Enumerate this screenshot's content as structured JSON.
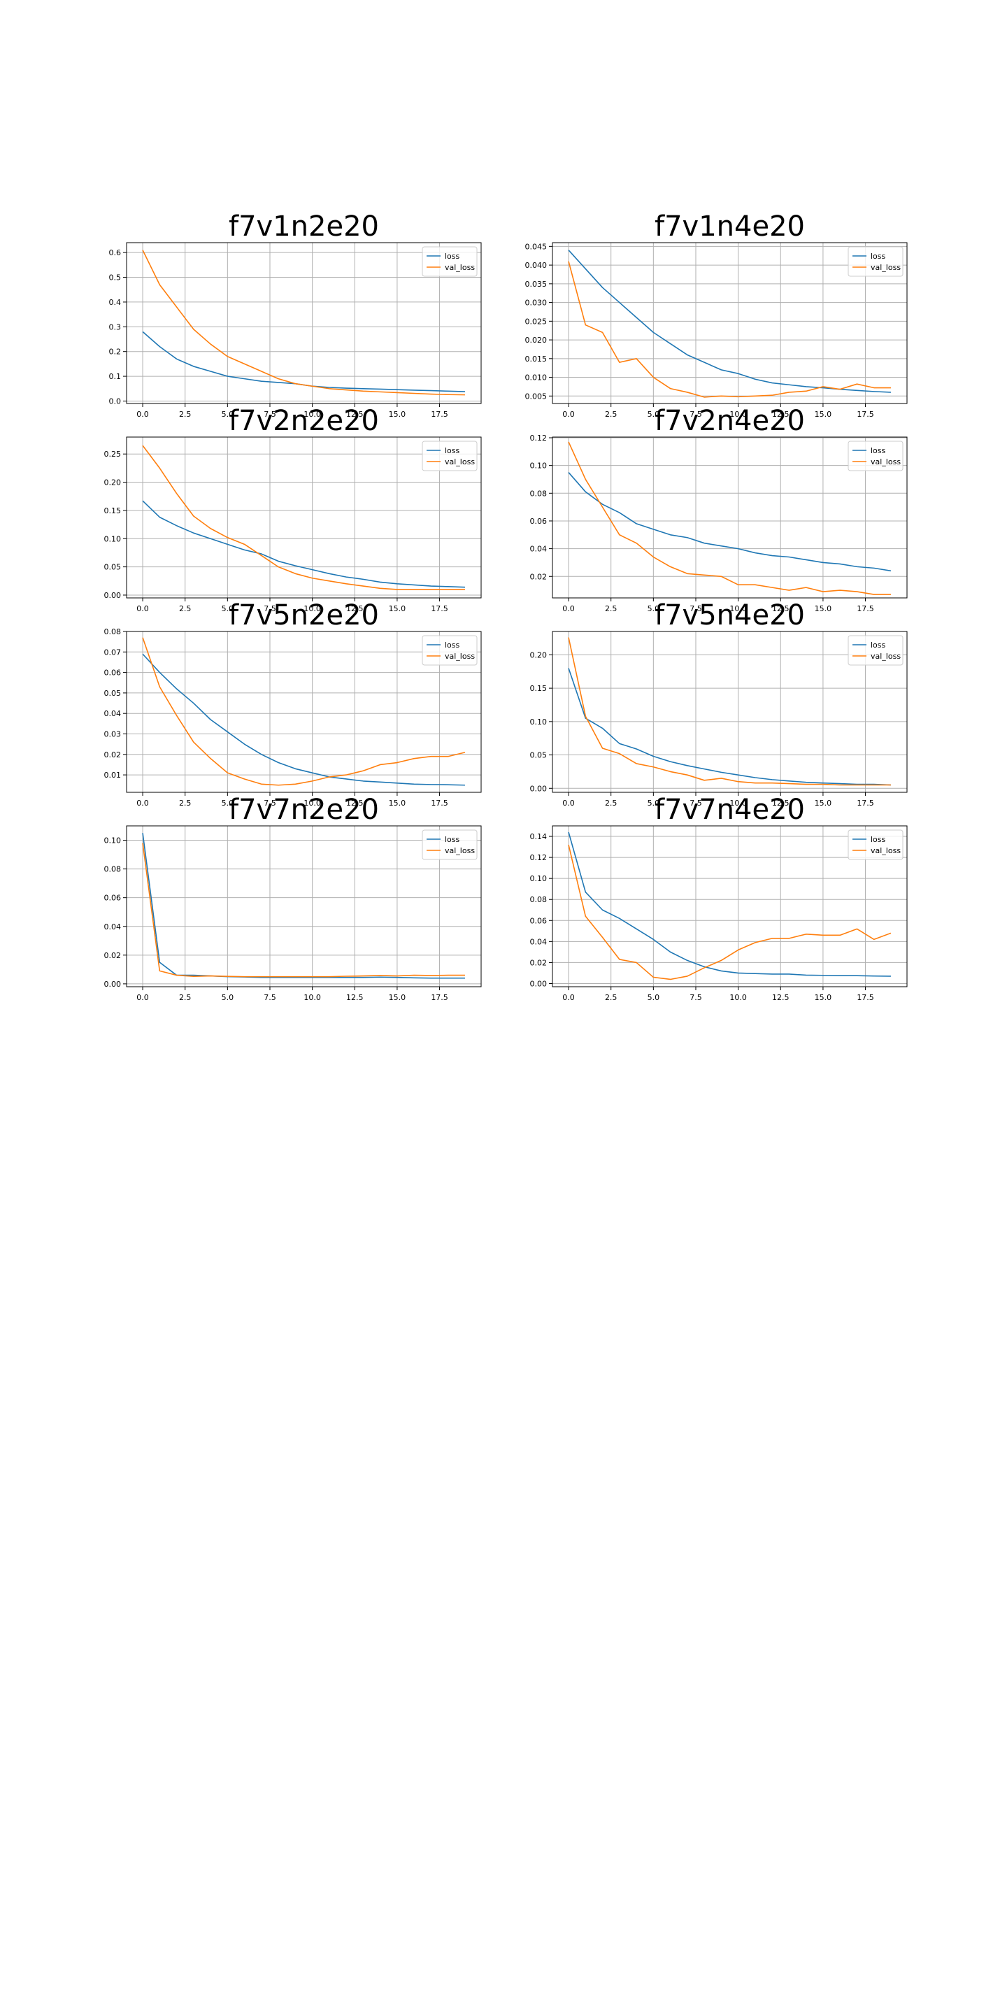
{
  "legend_labels": [
    "loss",
    "val_loss"
  ],
  "colors": {
    "loss": "#1f77b4",
    "val_loss": "#ff7f0e",
    "grid": "#b0b0b0",
    "axes": "#000000"
  },
  "chart_data": [
    {
      "type": "line",
      "title": "f7v1n2e20",
      "x": [
        0,
        1,
        2,
        3,
        4,
        5,
        6,
        7,
        8,
        9,
        10,
        11,
        12,
        13,
        14,
        15,
        16,
        17,
        18,
        19
      ],
      "xlim": [
        -0.95,
        19.95
      ],
      "ylim": [
        -0.01,
        0.64
      ],
      "xticks": [
        0.0,
        2.5,
        5.0,
        7.5,
        10.0,
        12.5,
        15.0,
        17.5
      ],
      "xtick_labels": [
        "0.0",
        "2.5",
        "5.0",
        "7.5",
        "10.0",
        "12.5",
        "15.0",
        "17.5"
      ],
      "yticks": [
        0.0,
        0.1,
        0.2,
        0.3,
        0.4,
        0.5,
        0.6
      ],
      "ytick_labels": [
        "0.0",
        "0.1",
        "0.2",
        "0.3",
        "0.4",
        "0.5",
        "0.6"
      ],
      "grid": true,
      "legend": "upper right",
      "series": [
        {
          "name": "loss",
          "color": "#1f77b4",
          "values": [
            0.28,
            0.22,
            0.17,
            0.14,
            0.12,
            0.1,
            0.09,
            0.08,
            0.075,
            0.07,
            0.06,
            0.055,
            0.052,
            0.05,
            0.048,
            0.046,
            0.044,
            0.042,
            0.04,
            0.038
          ]
        },
        {
          "name": "val_loss",
          "color": "#ff7f0e",
          "values": [
            0.61,
            0.47,
            0.38,
            0.29,
            0.23,
            0.18,
            0.15,
            0.12,
            0.09,
            0.07,
            0.06,
            0.05,
            0.045,
            0.04,
            0.037,
            0.034,
            0.031,
            0.028,
            0.026,
            0.025
          ]
        }
      ]
    },
    {
      "type": "line",
      "title": "f7v1n4e20",
      "x": [
        0,
        1,
        2,
        3,
        4,
        5,
        6,
        7,
        8,
        9,
        10,
        11,
        12,
        13,
        14,
        15,
        16,
        17,
        18,
        19
      ],
      "xlim": [
        -0.95,
        19.95
      ],
      "ylim": [
        0.003,
        0.046
      ],
      "xticks": [
        0.0,
        2.5,
        5.0,
        7.5,
        10.0,
        12.5,
        15.0,
        17.5
      ],
      "xtick_labels": [
        "0.0",
        "2.5",
        "5.0",
        "7.5",
        "10.0",
        "12.5",
        "15.0",
        "17.5"
      ],
      "yticks": [
        0.005,
        0.01,
        0.015,
        0.02,
        0.025,
        0.03,
        0.035,
        0.04,
        0.045
      ],
      "ytick_labels": [
        "0.005",
        "0.010",
        "0.015",
        "0.020",
        "0.025",
        "0.030",
        "0.035",
        "0.040",
        "0.045"
      ],
      "grid": true,
      "legend": "upper right",
      "series": [
        {
          "name": "loss",
          "color": "#1f77b4",
          "values": [
            0.044,
            0.039,
            0.034,
            0.03,
            0.026,
            0.022,
            0.019,
            0.016,
            0.014,
            0.012,
            0.011,
            0.0095,
            0.0085,
            0.008,
            0.0075,
            0.0072,
            0.0068,
            0.0065,
            0.0062,
            0.006
          ]
        },
        {
          "name": "val_loss",
          "color": "#ff7f0e",
          "values": [
            0.041,
            0.024,
            0.022,
            0.014,
            0.015,
            0.01,
            0.007,
            0.006,
            0.0047,
            0.005,
            0.0048,
            0.005,
            0.0052,
            0.006,
            0.0063,
            0.0075,
            0.0068,
            0.0082,
            0.0072,
            0.0072
          ]
        }
      ]
    },
    {
      "type": "line",
      "title": "f7v2n2e20",
      "x": [
        0,
        1,
        2,
        3,
        4,
        5,
        6,
        7,
        8,
        9,
        10,
        11,
        12,
        13,
        14,
        15,
        16,
        17,
        18,
        19
      ],
      "xlim": [
        -0.95,
        19.95
      ],
      "ylim": [
        -0.005,
        0.28
      ],
      "xticks": [
        0.0,
        2.5,
        5.0,
        7.5,
        10.0,
        12.5,
        15.0,
        17.5
      ],
      "xtick_labels": [
        "0.0",
        "2.5",
        "5.0",
        "7.5",
        "10.0",
        "12.5",
        "15.0",
        "17.5"
      ],
      "yticks": [
        0.0,
        0.05,
        0.1,
        0.15,
        0.2,
        0.25
      ],
      "ytick_labels": [
        "0.00",
        "0.05",
        "0.10",
        "0.15",
        "0.20",
        "0.25"
      ],
      "grid": true,
      "legend": "upper right",
      "series": [
        {
          "name": "loss",
          "color": "#1f77b4",
          "values": [
            0.167,
            0.138,
            0.123,
            0.11,
            0.1,
            0.09,
            0.08,
            0.073,
            0.06,
            0.052,
            0.045,
            0.038,
            0.032,
            0.028,
            0.023,
            0.02,
            0.018,
            0.016,
            0.015,
            0.014
          ]
        },
        {
          "name": "val_loss",
          "color": "#ff7f0e",
          "values": [
            0.265,
            0.225,
            0.18,
            0.14,
            0.118,
            0.102,
            0.09,
            0.07,
            0.05,
            0.038,
            0.03,
            0.025,
            0.02,
            0.016,
            0.012,
            0.01,
            0.01,
            0.01,
            0.01,
            0.01
          ]
        }
      ]
    },
    {
      "type": "line",
      "title": "f7v2n4e20",
      "x": [
        0,
        1,
        2,
        3,
        4,
        5,
        6,
        7,
        8,
        9,
        10,
        11,
        12,
        13,
        14,
        15,
        16,
        17,
        18,
        19
      ],
      "xlim": [
        -0.95,
        19.95
      ],
      "ylim": [
        0.0045,
        0.1205
      ],
      "xticks": [
        0.0,
        2.5,
        5.0,
        7.5,
        10.0,
        12.5,
        15.0,
        17.5
      ],
      "xtick_labels": [
        "0.0",
        "2.5",
        "5.0",
        "7.5",
        "10.0",
        "12.5",
        "15.0",
        "17.5"
      ],
      "yticks": [
        0.02,
        0.04,
        0.06,
        0.08,
        0.1,
        0.12
      ],
      "ytick_labels": [
        "0.02",
        "0.04",
        "0.06",
        "0.08",
        "0.10",
        "0.12"
      ],
      "grid": true,
      "legend": "upper right",
      "series": [
        {
          "name": "loss",
          "color": "#1f77b4",
          "values": [
            0.095,
            0.081,
            0.072,
            0.066,
            0.058,
            0.054,
            0.05,
            0.048,
            0.044,
            0.042,
            0.04,
            0.037,
            0.035,
            0.034,
            0.032,
            0.03,
            0.029,
            0.027,
            0.026,
            0.024
          ]
        },
        {
          "name": "val_loss",
          "color": "#ff7f0e",
          "values": [
            0.117,
            0.09,
            0.07,
            0.05,
            0.044,
            0.034,
            0.027,
            0.022,
            0.021,
            0.02,
            0.014,
            0.014,
            0.012,
            0.01,
            0.012,
            0.009,
            0.01,
            0.009,
            0.007,
            0.007
          ]
        }
      ]
    },
    {
      "type": "line",
      "title": "f7v5n2e20",
      "x": [
        0,
        1,
        2,
        3,
        4,
        5,
        6,
        7,
        8,
        9,
        10,
        11,
        12,
        13,
        14,
        15,
        16,
        17,
        18,
        19
      ],
      "xlim": [
        -0.95,
        19.95
      ],
      "ylim": [
        0.0015,
        0.08
      ],
      "xticks": [
        0.0,
        2.5,
        5.0,
        7.5,
        10.0,
        12.5,
        15.0,
        17.5
      ],
      "xtick_labels": [
        "0.0",
        "2.5",
        "5.0",
        "7.5",
        "10.0",
        "12.5",
        "15.0",
        "17.5"
      ],
      "yticks": [
        0.01,
        0.02,
        0.03,
        0.04,
        0.05,
        0.06,
        0.07,
        0.08
      ],
      "ytick_labels": [
        "0.01",
        "0.02",
        "0.03",
        "0.04",
        "0.05",
        "0.06",
        "0.07",
        "0.08"
      ],
      "grid": true,
      "legend": "upper right",
      "series": [
        {
          "name": "loss",
          "color": "#1f77b4",
          "values": [
            0.069,
            0.06,
            0.052,
            0.045,
            0.037,
            0.031,
            0.025,
            0.02,
            0.016,
            0.013,
            0.011,
            0.009,
            0.008,
            0.007,
            0.0065,
            0.006,
            0.0055,
            0.0053,
            0.0052,
            0.005
          ]
        },
        {
          "name": "val_loss",
          "color": "#ff7f0e",
          "values": [
            0.077,
            0.053,
            0.039,
            0.026,
            0.018,
            0.011,
            0.008,
            0.0055,
            0.005,
            0.0055,
            0.007,
            0.009,
            0.01,
            0.012,
            0.015,
            0.016,
            0.018,
            0.019,
            0.019,
            0.021
          ]
        }
      ]
    },
    {
      "type": "line",
      "title": "f7v5n4e20",
      "x": [
        0,
        1,
        2,
        3,
        4,
        5,
        6,
        7,
        8,
        9,
        10,
        11,
        12,
        13,
        14,
        15,
        16,
        17,
        18,
        19
      ],
      "xlim": [
        -0.95,
        19.95
      ],
      "ylim": [
        -0.006,
        0.235
      ],
      "xticks": [
        0.0,
        2.5,
        5.0,
        7.5,
        10.0,
        12.5,
        15.0,
        17.5
      ],
      "xtick_labels": [
        "0.0",
        "2.5",
        "5.0",
        "7.5",
        "10.0",
        "12.5",
        "15.0",
        "17.5"
      ],
      "yticks": [
        0.0,
        0.05,
        0.1,
        0.15,
        0.2
      ],
      "ytick_labels": [
        "0.00",
        "0.05",
        "0.10",
        "0.15",
        "0.20"
      ],
      "grid": true,
      "legend": "upper right",
      "series": [
        {
          "name": "loss",
          "color": "#1f77b4",
          "values": [
            0.18,
            0.105,
            0.09,
            0.067,
            0.059,
            0.048,
            0.04,
            0.034,
            0.029,
            0.024,
            0.02,
            0.016,
            0.013,
            0.011,
            0.009,
            0.008,
            0.007,
            0.006,
            0.006,
            0.005
          ]
        },
        {
          "name": "val_loss",
          "color": "#ff7f0e",
          "values": [
            0.226,
            0.108,
            0.06,
            0.052,
            0.037,
            0.032,
            0.025,
            0.02,
            0.012,
            0.015,
            0.01,
            0.008,
            0.008,
            0.007,
            0.006,
            0.006,
            0.005,
            0.005,
            0.005,
            0.005
          ]
        }
      ]
    },
    {
      "type": "line",
      "title": "f7v7n2e20",
      "x": [
        0,
        1,
        2,
        3,
        4,
        5,
        6,
        7,
        8,
        9,
        10,
        11,
        12,
        13,
        14,
        15,
        16,
        17,
        18,
        19
      ],
      "xlim": [
        -0.95,
        19.95
      ],
      "ylim": [
        -0.002,
        0.11
      ],
      "xticks": [
        0.0,
        2.5,
        5.0,
        7.5,
        10.0,
        12.5,
        15.0,
        17.5
      ],
      "xtick_labels": [
        "0.0",
        "2.5",
        "5.0",
        "7.5",
        "10.0",
        "12.5",
        "15.0",
        "17.5"
      ],
      "yticks": [
        0.0,
        0.02,
        0.04,
        0.06,
        0.08,
        0.1
      ],
      "ytick_labels": [
        "0.00",
        "0.02",
        "0.04",
        "0.06",
        "0.08",
        "0.10"
      ],
      "grid": true,
      "legend": "upper right",
      "series": [
        {
          "name": "loss",
          "color": "#1f77b4",
          "values": [
            0.105,
            0.015,
            0.006,
            0.006,
            0.0055,
            0.005,
            0.0048,
            0.0045,
            0.0045,
            0.0045,
            0.0045,
            0.0045,
            0.0045,
            0.0045,
            0.0047,
            0.0045,
            0.0042,
            0.004,
            0.004,
            0.004
          ]
        },
        {
          "name": "val_loss",
          "color": "#ff7f0e",
          "values": [
            0.098,
            0.009,
            0.006,
            0.0052,
            0.0055,
            0.0052,
            0.005,
            0.005,
            0.005,
            0.005,
            0.005,
            0.005,
            0.0053,
            0.0055,
            0.0058,
            0.0055,
            0.006,
            0.0058,
            0.006,
            0.006
          ]
        }
      ]
    },
    {
      "type": "line",
      "title": "f7v7n4e20",
      "x": [
        0,
        1,
        2,
        3,
        4,
        5,
        6,
        7,
        8,
        9,
        10,
        11,
        12,
        13,
        14,
        15,
        16,
        17,
        18,
        19
      ],
      "xlim": [
        -0.95,
        19.95
      ],
      "ylim": [
        -0.003,
        0.15
      ],
      "xticks": [
        0.0,
        2.5,
        5.0,
        7.5,
        10.0,
        12.5,
        15.0,
        17.5
      ],
      "xtick_labels": [
        "0.0",
        "2.5",
        "5.0",
        "7.5",
        "10.0",
        "12.5",
        "15.0",
        "17.5"
      ],
      "yticks": [
        0.0,
        0.02,
        0.04,
        0.06,
        0.08,
        0.1,
        0.12,
        0.14
      ],
      "ytick_labels": [
        "0.00",
        "0.02",
        "0.04",
        "0.06",
        "0.08",
        "0.10",
        "0.12",
        "0.14"
      ],
      "grid": true,
      "legend": "upper right",
      "series": [
        {
          "name": "loss",
          "color": "#1f77b4",
          "values": [
            0.144,
            0.087,
            0.07,
            0.062,
            0.052,
            0.042,
            0.03,
            0.022,
            0.016,
            0.012,
            0.01,
            0.0095,
            0.009,
            0.009,
            0.008,
            0.0078,
            0.0075,
            0.0075,
            0.0072,
            0.007
          ]
        },
        {
          "name": "val_loss",
          "color": "#ff7f0e",
          "values": [
            0.132,
            0.064,
            0.044,
            0.023,
            0.02,
            0.006,
            0.004,
            0.007,
            0.015,
            0.022,
            0.032,
            0.039,
            0.043,
            0.043,
            0.047,
            0.046,
            0.046,
            0.052,
            0.042,
            0.048
          ]
        }
      ]
    }
  ]
}
